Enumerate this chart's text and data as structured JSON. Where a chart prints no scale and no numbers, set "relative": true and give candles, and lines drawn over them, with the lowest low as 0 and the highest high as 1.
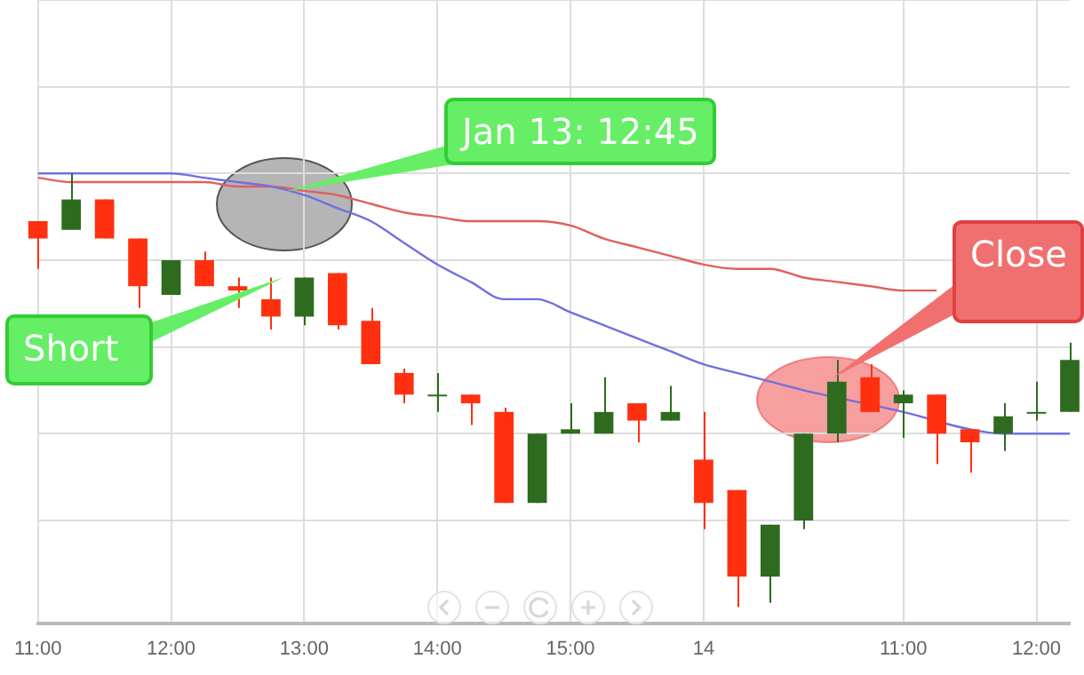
{
  "chart_data": {
    "type": "candlestick",
    "relative": true,
    "grid": true,
    "legend": false,
    "tick_labels": "x",
    "categories": [
      "11:00",
      null,
      null,
      null,
      "12:00",
      null,
      null,
      null,
      "13:00",
      null,
      null,
      null,
      "14:00",
      null,
      null,
      null,
      "15:00",
      null,
      null,
      null,
      "14",
      null,
      null,
      null,
      null,
      null,
      "11:00",
      null,
      null,
      null,
      "12:00",
      null
    ],
    "ohlc": [
      [
        0.89,
        0.89,
        0.78,
        0.85
      ],
      [
        0.87,
        1.0,
        0.87,
        0.94
      ],
      [
        0.94,
        0.94,
        0.85,
        0.85
      ],
      [
        0.85,
        0.85,
        0.69,
        0.74
      ],
      [
        0.72,
        0.8,
        0.72,
        0.8
      ],
      [
        0.8,
        0.82,
        0.74,
        0.74
      ],
      [
        0.74,
        0.76,
        0.69,
        0.73
      ],
      [
        0.71,
        0.76,
        0.64,
        0.67
      ],
      [
        0.67,
        0.76,
        0.65,
        0.76
      ],
      [
        0.77,
        0.77,
        0.64,
        0.65
      ],
      [
        0.66,
        0.69,
        0.56,
        0.56
      ],
      [
        0.54,
        0.55,
        0.47,
        0.49
      ],
      [
        0.49,
        0.54,
        0.45,
        0.49
      ],
      [
        0.49,
        0.49,
        0.42,
        0.47
      ],
      [
        0.45,
        0.46,
        0.24,
        0.24
      ],
      [
        0.24,
        0.4,
        0.24,
        0.4
      ],
      [
        0.4,
        0.47,
        0.4,
        0.41
      ],
      [
        0.4,
        0.53,
        0.4,
        0.45
      ],
      [
        0.47,
        0.47,
        0.38,
        0.43
      ],
      [
        0.43,
        0.51,
        0.43,
        0.45
      ],
      [
        0.34,
        0.45,
        0.18,
        0.24
      ],
      [
        0.27,
        0.27,
        0.0,
        0.07
      ],
      [
        0.07,
        0.19,
        0.01,
        0.19
      ],
      [
        0.2,
        0.4,
        0.18,
        0.4
      ],
      [
        0.4,
        0.57,
        0.38,
        0.52
      ],
      [
        0.53,
        0.56,
        0.45,
        0.45
      ],
      [
        0.47,
        0.5,
        0.39,
        0.49
      ],
      [
        0.49,
        0.49,
        0.33,
        0.4
      ],
      [
        0.41,
        0.41,
        0.31,
        0.38
      ],
      [
        0.4,
        0.47,
        0.36,
        0.44
      ],
      [
        0.45,
        0.52,
        0.43,
        0.45
      ],
      [
        0.45,
        0.61,
        0.45,
        0.57
      ]
    ],
    "colors": [
      "#ff3010",
      "#2e6b1f",
      "#ff3010",
      "#ff3010",
      "#2e6b1f",
      "#ff3010",
      "#ff3010",
      "#ff3010",
      "#2e6b1f",
      "#ff3010",
      "#ff3010",
      "#ff3010",
      "#2e6b1f",
      "#ff3010",
      "#ff3010",
      "#2e6b1f",
      "#2e6b1f",
      "#2e6b1f",
      "#ff3010",
      "#2e6b1f",
      "#ff3010",
      "#ff3010",
      "#2e6b1f",
      "#2e6b1f",
      "#2e6b1f",
      "#ff3010",
      "#2e6b1f",
      "#ff3010",
      "#ff3010",
      "#2e6b1f",
      "#2e6b1f",
      "#2e6b1f"
    ],
    "series": [
      {
        "type": "line",
        "color": "#7070e0",
        "values": [
          1.0,
          1.0,
          1.0,
          1.0,
          1.0,
          0.99,
          0.98,
          0.97,
          0.95,
          0.92,
          0.89,
          0.84,
          0.79,
          0.75,
          0.71,
          0.71,
          0.68,
          0.65,
          0.62,
          0.59,
          0.56,
          0.54,
          0.52,
          0.5,
          null,
          null,
          0.45,
          null,
          0.41,
          0.4,
          0.4,
          0.4
        ]
      },
      {
        "type": "line",
        "color": "#e06060",
        "values": [
          0.99,
          0.98,
          0.98,
          0.98,
          0.98,
          0.98,
          0.97,
          0.97,
          0.96,
          0.95,
          0.93,
          0.91,
          0.9,
          0.89,
          0.89,
          0.89,
          0.88,
          0.85,
          0.83,
          0.81,
          0.79,
          0.78,
          0.78,
          0.76,
          0.75,
          0.74,
          0.73,
          0.73,
          null,
          null,
          null,
          null
        ]
      }
    ],
    "annotations": [
      "Jan 13: 12:45",
      "Short",
      "Close"
    ]
  }
}
